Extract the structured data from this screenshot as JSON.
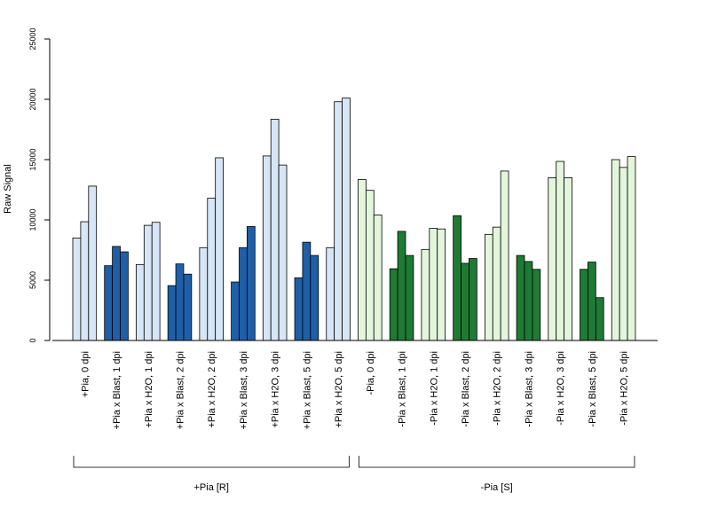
{
  "chart_data": {
    "type": "bar",
    "ylabel": "Raw Signal",
    "ylim": [
      0,
      25000
    ],
    "yticks": [
      0,
      5000,
      10000,
      15000,
      20000,
      25000
    ],
    "grid": false,
    "legend": "none",
    "colors": {
      "pia_h2o": "#d7e6f6",
      "pia_blast": "#1f5fa8",
      "nopia_h2o": "#e3f6dc",
      "nopia_blast": "#1f7a33",
      "border": "#000000"
    },
    "categories": [
      "+Pia, 0 dpi",
      "+Pia x Blast, 1 dpi",
      "+Pia x H2O, 1 dpi",
      "+Pia x Blast, 2 dpi",
      "+Pia x H2O, 2 dpi",
      "+Pia x Blast, 3 dpi",
      "+Pia x H2O, 3 dpi",
      "+Pia x Blast, 5 dpi",
      "+Pia x H2O, 5 dpi",
      "-Pia, 0 dpi",
      "-Pia x Blast, 1 dpi",
      "-Pia x H2O, 1 dpi",
      "-Pia x Blast, 2 dpi",
      "-Pia x H2O, 2 dpi",
      "-Pia x Blast, 3 dpi",
      "-Pia x H2O, 3 dpi",
      "-Pia x Blast, 5 dpi",
      "-Pia x H2O, 5 dpi"
    ],
    "category_color": [
      "pia_h2o",
      "pia_blast",
      "pia_h2o",
      "pia_blast",
      "pia_h2o",
      "pia_blast",
      "pia_h2o",
      "pia_blast",
      "pia_h2o",
      "nopia_h2o",
      "nopia_blast",
      "nopia_h2o",
      "nopia_blast",
      "nopia_h2o",
      "nopia_blast",
      "nopia_h2o",
      "nopia_blast",
      "nopia_h2o"
    ],
    "values": [
      [
        8500,
        9850,
        12800
      ],
      [
        6200,
        7800,
        7350
      ],
      [
        6300,
        9550,
        9800
      ],
      [
        4550,
        6350,
        5500
      ],
      [
        7700,
        11800,
        15150
      ],
      [
        4850,
        7700,
        9450
      ],
      [
        15300,
        18350,
        14550
      ],
      [
        5200,
        8150,
        7050
      ],
      [
        7700,
        19800,
        20100
      ],
      [
        13350,
        12450,
        10400
      ],
      [
        5950,
        9050,
        7050
      ],
      [
        7550,
        9300,
        9250
      ],
      [
        10350,
        6400,
        6800
      ],
      [
        8800,
        9400,
        14050
      ],
      [
        7050,
        6550,
        5900
      ],
      [
        13500,
        14850,
        13500
      ],
      [
        5900,
        6500,
        3550
      ],
      [
        15000,
        14350,
        15250
      ]
    ],
    "groups": [
      {
        "label": "+Pia [R]",
        "first": 0,
        "last": 8
      },
      {
        "label": "-Pia [S]",
        "first": 9,
        "last": 17
      }
    ]
  }
}
